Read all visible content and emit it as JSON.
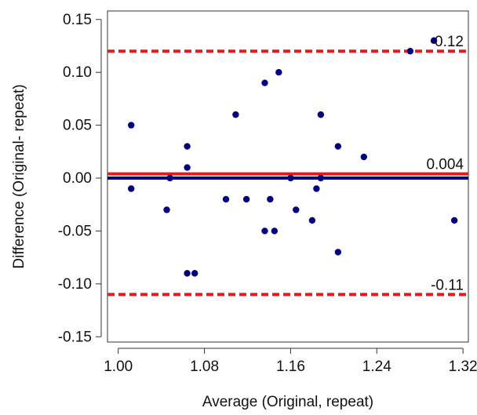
{
  "chart_data": {
    "type": "scatter",
    "title": "",
    "xlabel": "Average (Original, repeat)",
    "ylabel": "Difference (Original- repeat)",
    "xlim": [
      0.99,
      1.325
    ],
    "ylim": [
      -0.155,
      0.158
    ],
    "x_ticks": [
      1.0,
      1.08,
      1.16,
      1.24,
      1.32
    ],
    "x_tick_labels": [
      "1.00",
      "1.08",
      "1.16",
      "1.24",
      "1.32"
    ],
    "y_ticks": [
      -0.15,
      -0.1,
      -0.05,
      0.0,
      0.05,
      0.1,
      0.15
    ],
    "y_tick_labels": [
      "-0.15",
      "-0.10",
      "-0.05",
      "0.00",
      "0.05",
      "0.10",
      "0.15"
    ],
    "grid": false,
    "point_color": "#00007f",
    "points": [
      {
        "x": 1.012,
        "y": 0.05
      },
      {
        "x": 1.012,
        "y": -0.01
      },
      {
        "x": 1.045,
        "y": -0.03
      },
      {
        "x": 1.048,
        "y": 0.0
      },
      {
        "x": 1.064,
        "y": 0.03
      },
      {
        "x": 1.064,
        "y": 0.01
      },
      {
        "x": 1.064,
        "y": -0.09
      },
      {
        "x": 1.071,
        "y": -0.09
      },
      {
        "x": 1.1,
        "y": -0.02
      },
      {
        "x": 1.109,
        "y": 0.06
      },
      {
        "x": 1.119,
        "y": -0.02
      },
      {
        "x": 1.136,
        "y": 0.09
      },
      {
        "x": 1.136,
        "y": -0.05
      },
      {
        "x": 1.141,
        "y": -0.02
      },
      {
        "x": 1.145,
        "y": -0.05
      },
      {
        "x": 1.149,
        "y": 0.1
      },
      {
        "x": 1.16,
        "y": 0.0
      },
      {
        "x": 1.165,
        "y": -0.03
      },
      {
        "x": 1.18,
        "y": -0.04
      },
      {
        "x": 1.184,
        "y": -0.01
      },
      {
        "x": 1.188,
        "y": 0.06
      },
      {
        "x": 1.188,
        "y": 0.0
      },
      {
        "x": 1.204,
        "y": 0.03
      },
      {
        "x": 1.204,
        "y": -0.07
      },
      {
        "x": 1.228,
        "y": 0.02
      },
      {
        "x": 1.271,
        "y": 0.12
      },
      {
        "x": 1.293,
        "y": 0.13
      },
      {
        "x": 1.312,
        "y": -0.04
      }
    ],
    "reference_lines": [
      {
        "name": "upper-limit",
        "y": 0.12,
        "label": "0.12",
        "color": "#e8191c",
        "style": "dashed"
      },
      {
        "name": "mean-difference",
        "y": 0.004,
        "label": "0.004",
        "color": "#e8191c",
        "style": "solid"
      },
      {
        "name": "zero",
        "y": 0.0,
        "label": "",
        "color": "#00007f",
        "style": "solid"
      },
      {
        "name": "lower-limit",
        "y": -0.11,
        "label": "-0.11",
        "color": "#e8191c",
        "style": "dashed"
      }
    ]
  }
}
